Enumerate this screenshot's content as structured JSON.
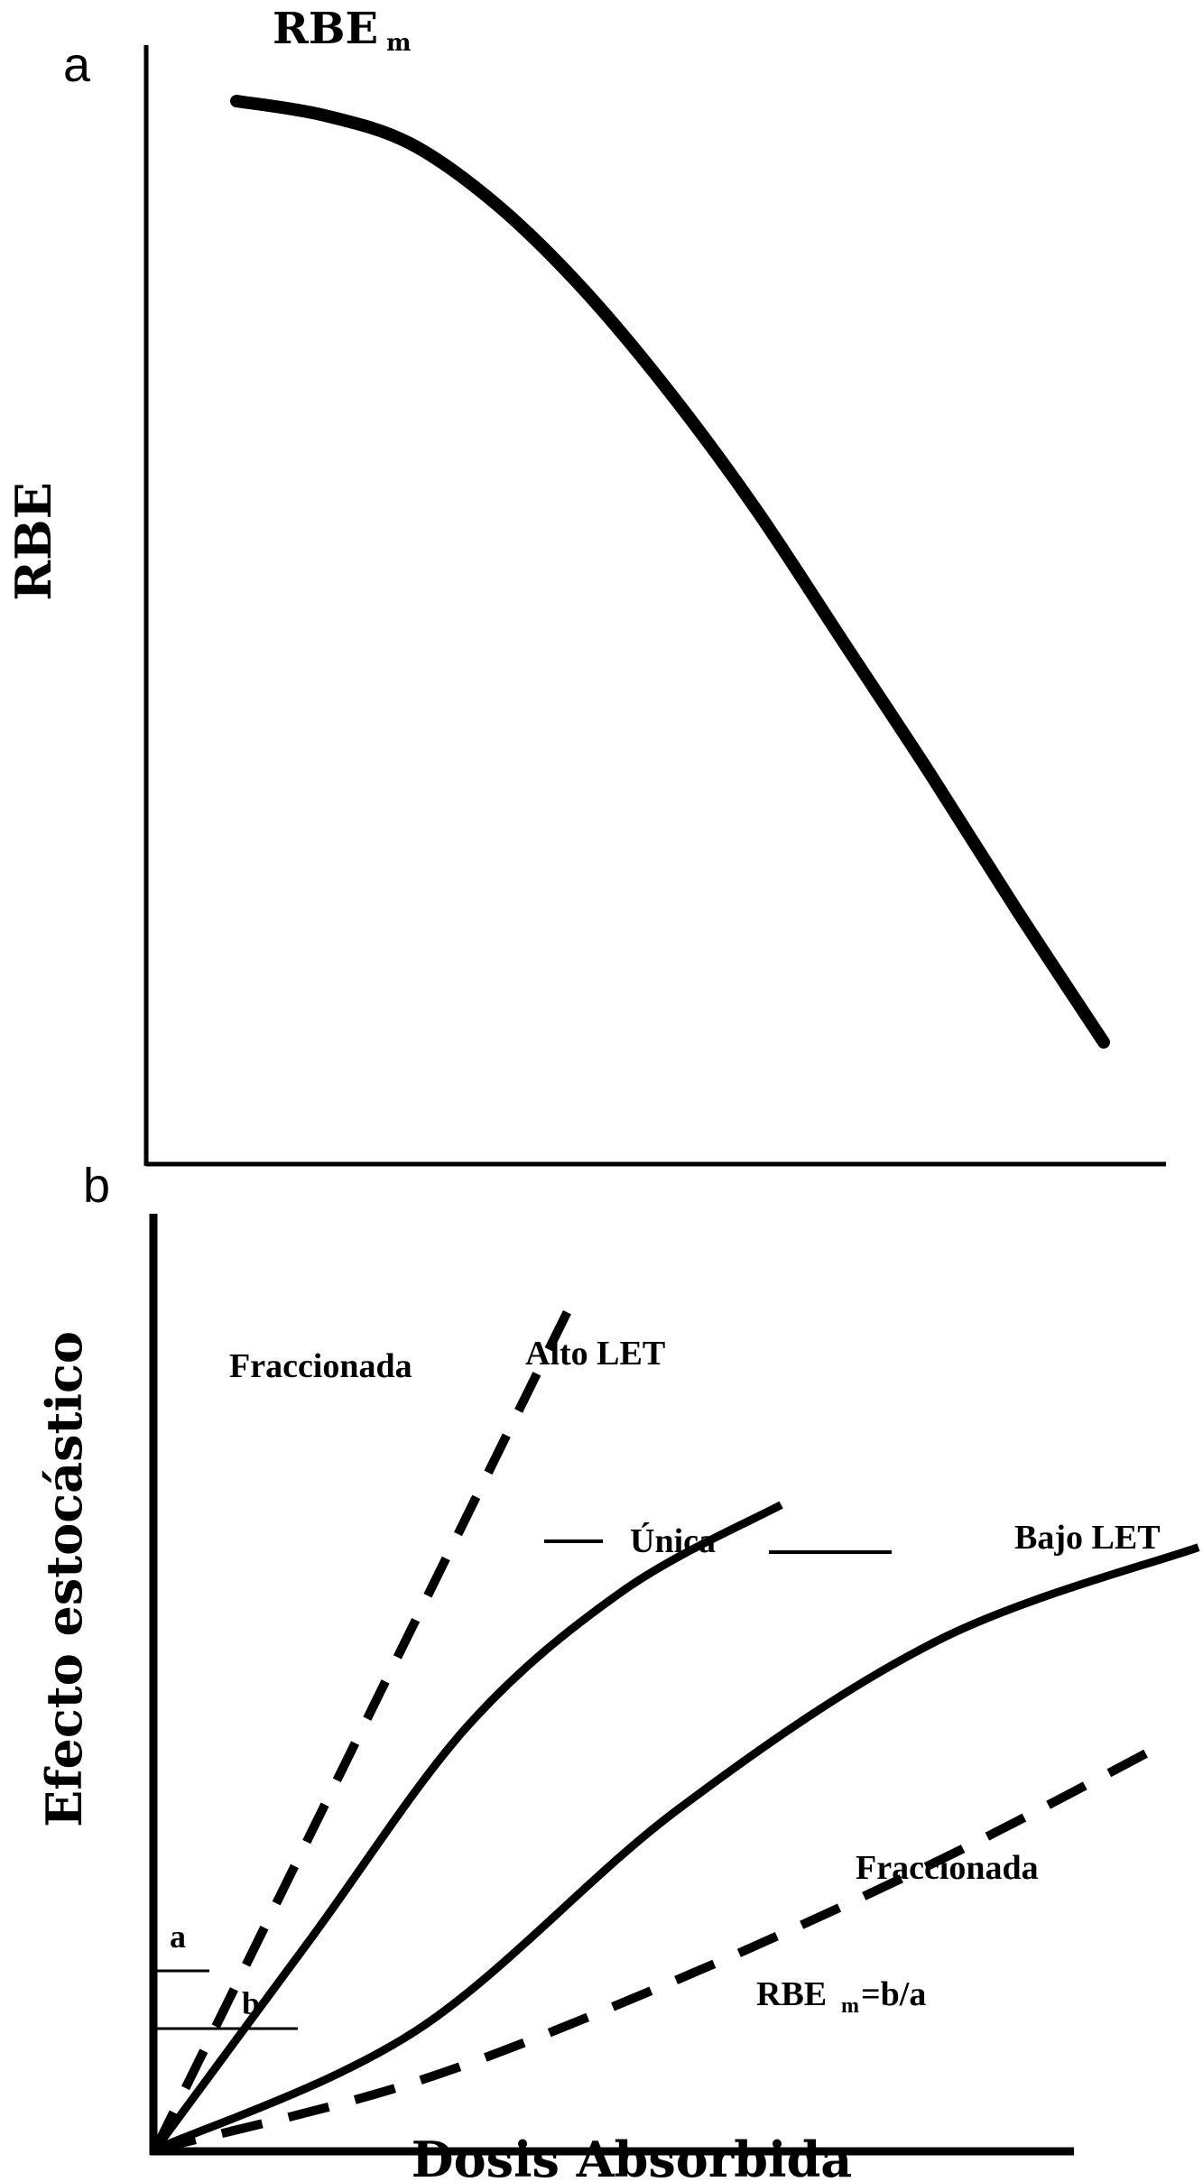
{
  "figure": {
    "panel_a_label": "a",
    "panel_b_label": "b"
  },
  "chart_data": [
    {
      "type": "line",
      "panel": "a",
      "title": "",
      "xlabel": "",
      "ylabel": "RBE",
      "annotations": {
        "rbe_m_main": "RBE",
        "rbe_m_sub": "m"
      },
      "ticks": "none",
      "grid": false,
      "series": [
        {
          "x": [
            0.0,
            0.1,
            0.2,
            0.3,
            0.4,
            0.5,
            0.6,
            0.7,
            0.8,
            0.9,
            1.0
          ],
          "values": [
            1.0,
            0.985,
            0.955,
            0.89,
            0.8,
            0.69,
            0.565,
            0.425,
            0.285,
            0.14,
            0.0
          ]
        }
      ],
      "line_color": "#000000"
    },
    {
      "type": "line",
      "panel": "b",
      "title": "",
      "xlabel": "Dosis Absorbida",
      "ylabel": "Efecto estocástico",
      "ticks": "none",
      "grid": false,
      "labels": {
        "fraccionada_high": "Fraccionada",
        "alto_let": "Alto LET",
        "unica": "Única",
        "bajo_let": "Bajo LET",
        "fraccionada_low": "Fraccionada",
        "rbe_m_formula_main": "RBE",
        "rbe_m_formula_sub": "m",
        "rbe_m_formula_rest": "=b/a",
        "marker_a": "a",
        "marker_b": "b"
      },
      "series": [
        {
          "style": "dashed",
          "x": [
            0,
            0.1,
            0.2,
            0.3,
            0.4
          ],
          "values": [
            0,
            0.25,
            0.5,
            0.75,
            1.0
          ]
        },
        {
          "style": "solid",
          "x": [
            0,
            0.15,
            0.3,
            0.45,
            0.6
          ],
          "values": [
            0,
            0.25,
            0.5,
            0.66,
            0.76
          ]
        },
        {
          "style": "solid",
          "x": [
            0,
            0.25,
            0.5,
            0.75,
            1.0
          ],
          "values": [
            0,
            0.14,
            0.4,
            0.6,
            0.71
          ]
        },
        {
          "style": "dashed",
          "x": [
            0,
            0.25,
            0.5,
            0.75,
            0.97
          ],
          "values": [
            0,
            0.08,
            0.2,
            0.34,
            0.48
          ]
        }
      ],
      "line_color": "#000000"
    }
  ]
}
